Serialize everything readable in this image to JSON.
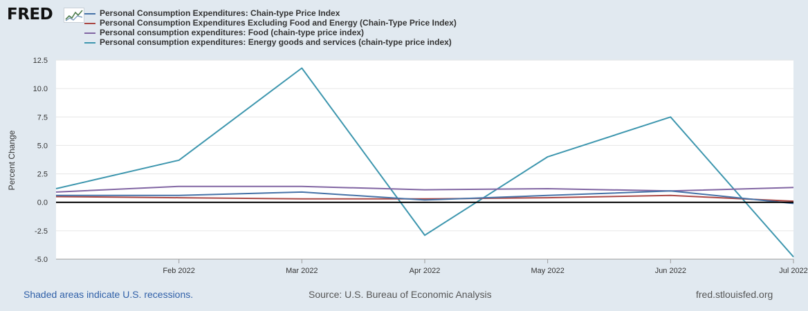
{
  "logo": {
    "text": "FRED",
    "icon": "fred-chart-badge-icon"
  },
  "chart_data": {
    "type": "line",
    "ylabel": "Percent Change",
    "ylim": [
      -5.0,
      12.5
    ],
    "y_ticks": [
      "12.5",
      "10.0",
      "7.5",
      "5.0",
      "2.5",
      "0.0",
      "-2.5",
      "-5.0"
    ],
    "x_ticks": [
      "Feb 2022",
      "Mar 2022",
      "Apr 2022",
      "May 2022",
      "Jun 2022",
      "Jul 2022"
    ],
    "x": [
      "Jan 2022",
      "Feb 2022",
      "Mar 2022",
      "Apr 2022",
      "May 2022",
      "Jun 2022",
      "Jul 2022"
    ],
    "grid": true,
    "zero_line": true,
    "series": [
      {
        "name": "Personal Consumption Expenditures: Chain-type Price Index",
        "color": "#4572a7",
        "values": [
          0.6,
          0.6,
          0.9,
          0.2,
          0.6,
          1.0,
          -0.1
        ]
      },
      {
        "name": "Personal Consumption Expenditures Excluding Food and Energy (Chain-Type Price Index)",
        "color": "#aa4643",
        "values": [
          0.5,
          0.4,
          0.3,
          0.3,
          0.4,
          0.6,
          0.1
        ]
      },
      {
        "name": "Personal consumption expenditures: Food (chain-type price index)",
        "color": "#8064a2",
        "values": [
          0.9,
          1.4,
          1.4,
          1.1,
          1.2,
          1.0,
          1.3
        ]
      },
      {
        "name": "Personal consumption expenditures: Energy goods and services (chain-type price index)",
        "color": "#3d96ae",
        "values": [
          1.2,
          3.7,
          11.8,
          -2.9,
          4.0,
          7.5,
          -4.8
        ]
      }
    ]
  },
  "footer": {
    "recession_note": "Shaded areas indicate U.S. recessions.",
    "source": "Source: U.S. Bureau of Economic Analysis",
    "site": "fred.stlouisfed.org"
  }
}
